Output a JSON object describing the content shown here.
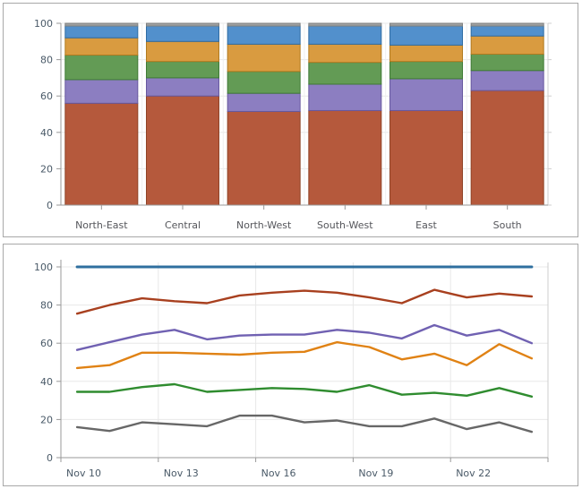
{
  "chart_data": [
    {
      "id": "regions-stacked-bar",
      "type": "bar",
      "subtype": "stacked-100",
      "title": "",
      "xlabel": "",
      "ylabel": "",
      "ylim": [
        0,
        100
      ],
      "y_ticks": [
        0,
        20,
        40,
        60,
        80,
        100
      ],
      "grid": "on",
      "legend": "none",
      "categories": [
        "North-East",
        "Central",
        "North-West",
        "South-West",
        "East",
        "South"
      ],
      "series": [
        {
          "name": "segment-rust",
          "color": "#B5593C",
          "stroke": "#8F4326",
          "values": [
            56,
            60,
            51.5,
            52,
            52,
            63
          ]
        },
        {
          "name": "segment-purple",
          "color": "#8C7EC1",
          "stroke": "#67589F",
          "values": [
            13,
            10,
            10,
            14.5,
            17.5,
            11
          ]
        },
        {
          "name": "segment-green",
          "color": "#639B55",
          "stroke": "#3F7A35",
          "values": [
            13.5,
            9,
            12,
            12,
            9.5,
            9
          ]
        },
        {
          "name": "segment-gold",
          "color": "#D99B40",
          "stroke": "#B07A1F",
          "values": [
            9.5,
            11,
            15,
            10,
            9,
            10
          ]
        },
        {
          "name": "segment-blue",
          "color": "#5290CC",
          "stroke": "#2F6CA3",
          "values": [
            6.5,
            8.5,
            10,
            10,
            10.5,
            5.5
          ]
        },
        {
          "name": "segment-gray",
          "color": "#9FA0A0",
          "stroke": "#7F8080",
          "values": [
            1.5,
            1.5,
            1.5,
            1.5,
            1.5,
            1.5
          ]
        }
      ]
    },
    {
      "id": "daily-line-chart",
      "type": "line",
      "title": "",
      "xlabel": "",
      "ylabel": "",
      "ylim": [
        0,
        100
      ],
      "y_ticks": [
        0,
        20,
        40,
        60,
        80,
        100
      ],
      "grid": "on",
      "legend": "none",
      "points_per_series": 15,
      "x_tick_labels": [
        "Nov 10",
        "Nov 13",
        "Nov 16",
        "Nov 19",
        "Nov 22"
      ],
      "x_label_every": 3,
      "series": [
        {
          "name": "line-blue",
          "color": "#2F6F9F",
          "values": [
            100,
            100,
            100,
            100,
            100,
            100,
            100,
            100,
            100,
            100,
            100,
            100,
            100,
            100,
            100
          ]
        },
        {
          "name": "line-dark-red",
          "color": "#A8401F",
          "values": [
            75.5,
            80,
            83.5,
            82,
            81,
            85,
            86.5,
            87.5,
            86.5,
            84,
            81,
            88,
            84,
            86,
            84.5
          ]
        },
        {
          "name": "line-purple",
          "color": "#7061B2",
          "values": [
            56.5,
            60.5,
            64.5,
            67,
            62,
            64,
            64.5,
            64.5,
            67,
            65.5,
            62.5,
            69.5,
            64,
            67,
            60
          ]
        },
        {
          "name": "line-orange",
          "color": "#E08214",
          "values": [
            47,
            48.5,
            55,
            55,
            54.5,
            54,
            55,
            55.5,
            60.5,
            58,
            51.5,
            54.5,
            48.5,
            59.5,
            52
          ]
        },
        {
          "name": "line-green",
          "color": "#2F8C2F",
          "values": [
            34.5,
            34.5,
            37,
            38.5,
            34.5,
            35.5,
            36.5,
            36,
            34.5,
            38,
            33,
            34,
            32.5,
            36.5,
            32
          ]
        },
        {
          "name": "line-gray",
          "color": "#676767",
          "values": [
            16,
            14,
            18.5,
            17.5,
            16.5,
            22,
            22,
            18.5,
            19.5,
            16.5,
            16.5,
            20.5,
            15,
            18.5,
            13.5
          ]
        }
      ]
    }
  ]
}
